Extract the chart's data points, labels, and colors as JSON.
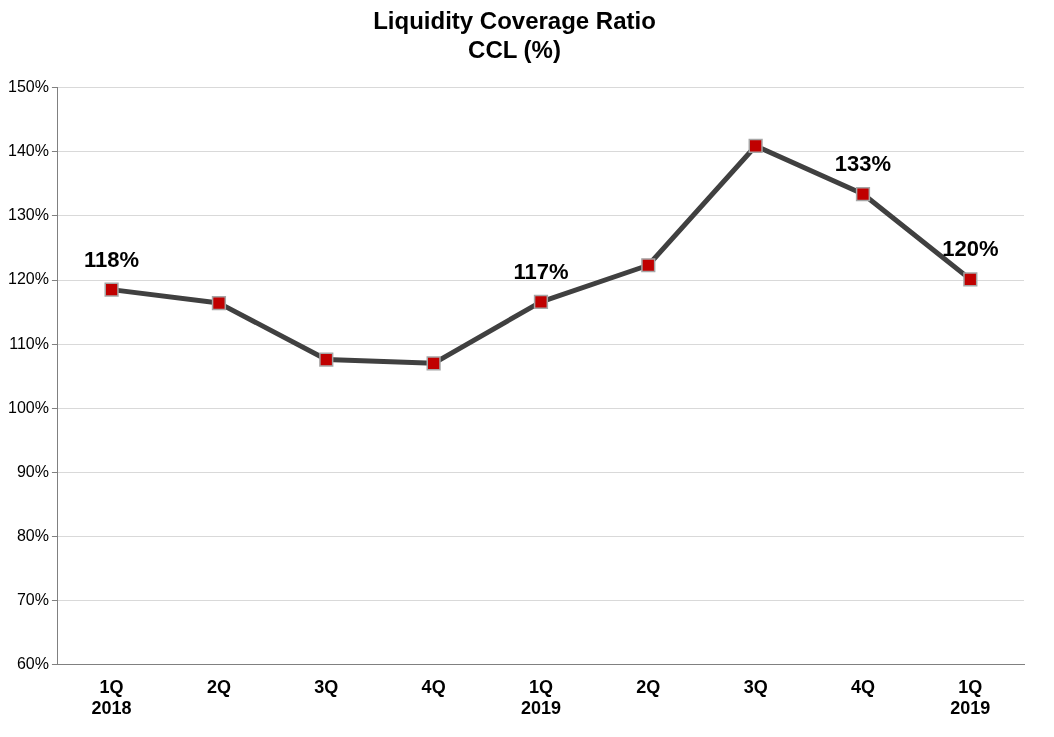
{
  "chart_data": {
    "type": "line",
    "title": [
      "Liquidity Coverage Ratio",
      "CCL (%)"
    ],
    "categories": [
      "1Q\n2018",
      "2Q",
      "3Q",
      "4Q",
      "1Q\n2019",
      "2Q",
      "3Q",
      "4Q",
      "1Q\n2019"
    ],
    "series": [
      {
        "color": "#404040",
        "colors": [
          "#c00000",
          "#c00000",
          "#c00000",
          "#c00000",
          "#c00000",
          "#c00000",
          "#c00000",
          "#c00000",
          "#c00000"
        ],
        "values": [
          118.5,
          116.4,
          107.6,
          107.0,
          116.6,
          122.3,
          140.9,
          133.4,
          120.1
        ],
        "value_labels": [
          "118%",
          null,
          null,
          null,
          "117%",
          null,
          null,
          "133%",
          "120%"
        ]
      }
    ],
    "ylim": [
      60,
      150
    ],
    "yticks": [
      {
        "value": 60,
        "label": "60%"
      },
      {
        "value": 70,
        "label": "70%"
      },
      {
        "value": 80,
        "label": "80%"
      },
      {
        "value": 90,
        "label": "90%"
      },
      {
        "value": 100,
        "label": "100%"
      },
      {
        "value": 110,
        "label": "110%"
      },
      {
        "value": 120,
        "label": "120%"
      },
      {
        "value": 130,
        "label": "130%"
      },
      {
        "value": 140,
        "label": "140%"
      },
      {
        "value": 150,
        "label": "150%"
      }
    ],
    "grid": "y",
    "legend": false,
    "marker": "square",
    "line_style": "solid"
  }
}
